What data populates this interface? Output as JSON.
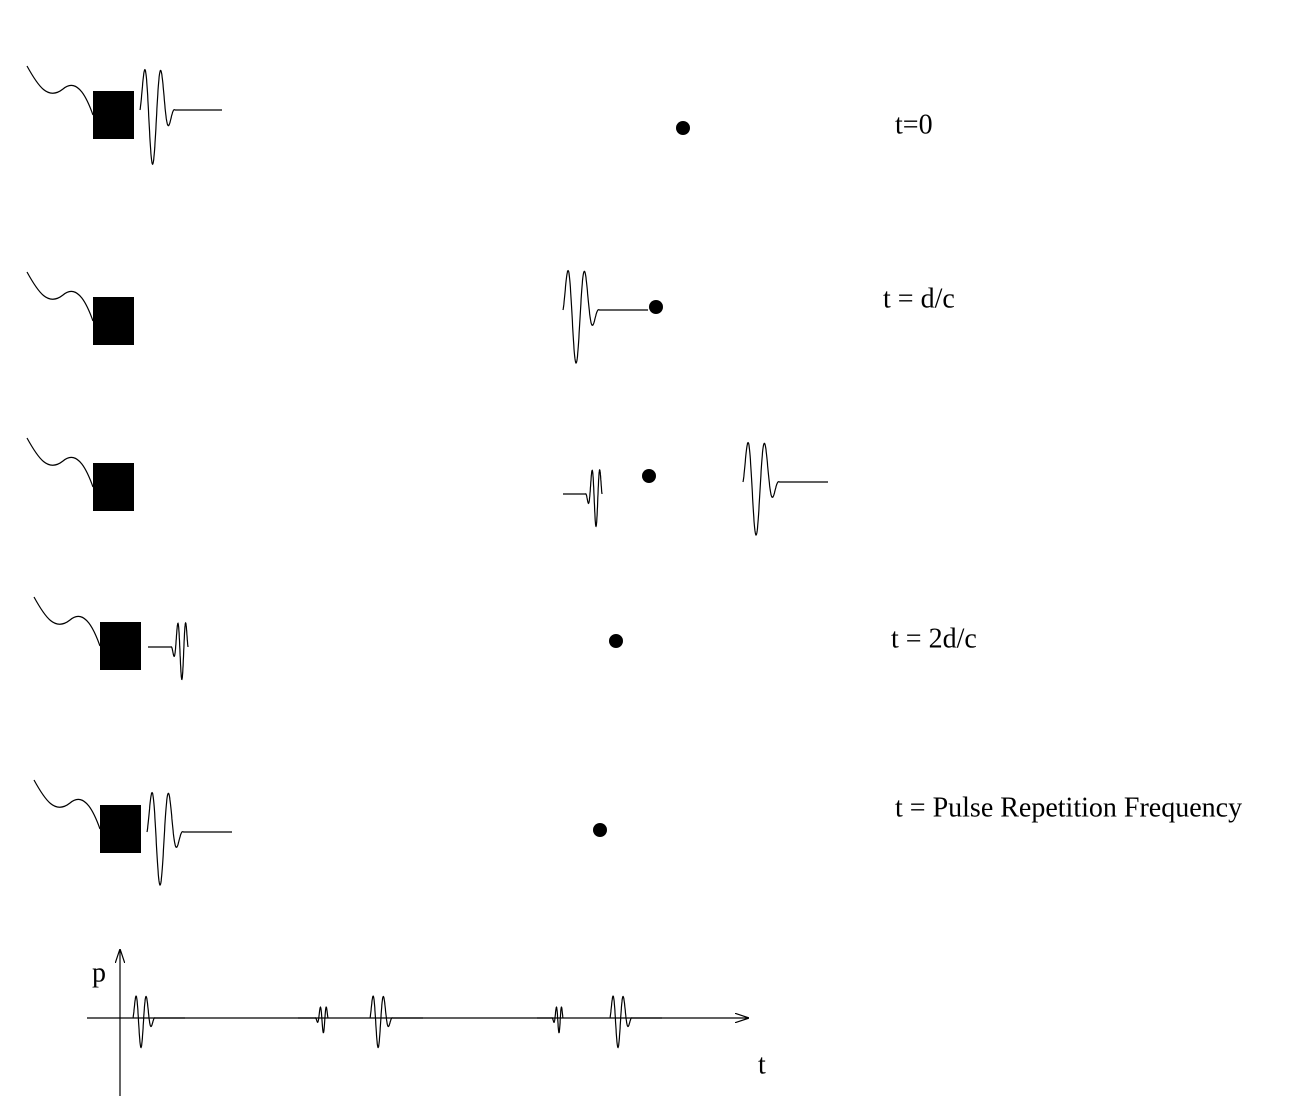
{
  "labels": [
    "t=0",
    "t = d/c",
    "t = 2d/c",
    "t = Pulse Repetition Frequency"
  ],
  "axis": {
    "y_label": "p",
    "x_label": "t"
  }
}
